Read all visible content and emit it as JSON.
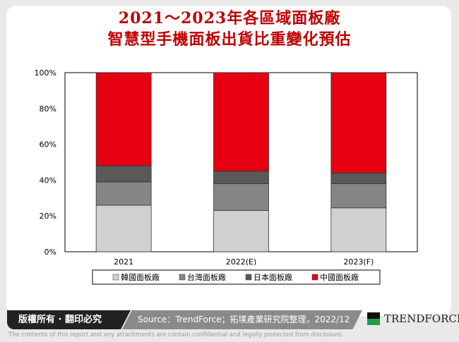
{
  "title": [
    "2021～2023年各區域面板廠",
    "智慧型手機面板出貨比重變化預估"
  ],
  "chart_data": {
    "type": "bar",
    "stacked": true,
    "categories": [
      "2021",
      "2022(E)",
      "2023(F)"
    ],
    "yticks": [
      "0%",
      "20%",
      "40%",
      "60%",
      "80%",
      "100%"
    ],
    "ylim": [
      0,
      100
    ],
    "legend_position": "bottom",
    "series": [
      {
        "name": "韓國面板廠",
        "color": "#d0d0d0",
        "values": [
          26,
          23,
          24.5
        ]
      },
      {
        "name": "台灣面板廠",
        "color": "#858585",
        "values": [
          13,
          15,
          13.5
        ]
      },
      {
        "name": "日本面板廠",
        "color": "#595959",
        "values": [
          9,
          7,
          6
        ]
      },
      {
        "name": "中國面板廠",
        "color": "#e60012",
        "values": [
          52,
          55,
          56
        ]
      }
    ]
  },
  "footer": {
    "copyright": "版權所有 · 翻印必究",
    "source": "Source：TrendForce；拓墣產業研究院整理，2022/12",
    "logo": "TRENDFORCE",
    "disclaimer": "The contents of this report and any attachments are contain confidential and legally protected from disclosure."
  }
}
